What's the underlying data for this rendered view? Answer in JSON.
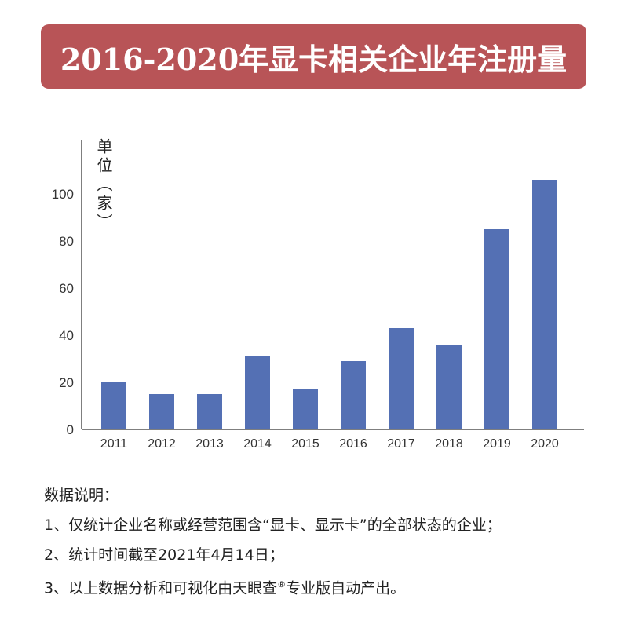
{
  "title": "2016-2020年显卡相关企业年注册量",
  "chart_data": {
    "type": "bar",
    "title": "2016-2020年显卡相关企业年注册量",
    "ylabel": "单位（家）",
    "xlabel": "",
    "categories": [
      "2011",
      "2012",
      "2013",
      "2014",
      "2015",
      "2016",
      "2017",
      "2018",
      "2019",
      "2020"
    ],
    "values": [
      20,
      15,
      15,
      31,
      17,
      29,
      43,
      36,
      85,
      106
    ],
    "ylim": [
      0,
      120
    ],
    "yticks": [
      0,
      20,
      40,
      60,
      80,
      100
    ],
    "grid": false,
    "bar_color": "#5470b4"
  },
  "notes": {
    "heading": "数据说明：",
    "items": [
      "1、仅统计企业名称或经营范围含“显卡、显示卡”的全部状态的企业；",
      "2、统计时间截至2021年4月14日；",
      "3、以上数据分析和可视化由天眼查"
    ],
    "item3_mark": "®",
    "item3_tail": "专业版自动产出。"
  }
}
